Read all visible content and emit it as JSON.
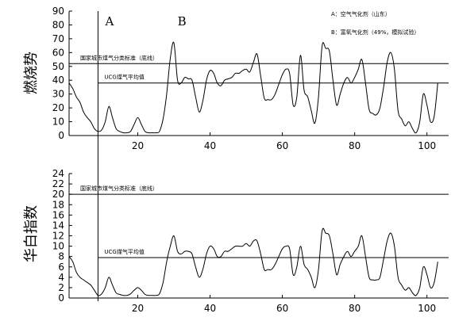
{
  "chart_data": [
    {
      "type": "line",
      "ylabel": "燃烧势",
      "ylim": [
        0,
        90
      ],
      "yticks": [
        0,
        10,
        20,
        30,
        40,
        50,
        60,
        70,
        80,
        90
      ],
      "xlim": [
        1,
        106
      ],
      "xticks": [
        20,
        40,
        60,
        80,
        100
      ],
      "grid": false,
      "legend_position": "top-right",
      "legend": [
        "A：空气气化剂（山东）",
        "B：富氧气化剂（49%，模拟试验）"
      ],
      "region_labels": [
        {
          "text": "A",
          "x": 11
        },
        {
          "text": "B",
          "x": 31
        }
      ],
      "divider_x": 9,
      "reference_lines": [
        {
          "label": "国家城市煤气分类标准（底线）",
          "y": 52
        },
        {
          "label": "UCG煤气平均值",
          "y": 38
        }
      ],
      "series": [
        {
          "x": [
            1,
            2,
            3,
            4,
            5,
            6,
            7,
            8,
            9,
            10,
            11,
            12,
            13,
            14,
            15,
            16,
            17,
            18,
            19,
            20,
            21,
            22,
            23,
            24,
            25,
            26,
            27,
            28,
            29,
            30,
            31,
            32,
            33,
            34,
            35,
            36,
            37,
            38,
            39,
            40,
            41,
            42,
            43,
            44,
            45,
            46,
            47,
            48,
            49,
            50,
            51,
            52,
            53,
            54,
            55,
            56,
            57,
            58,
            59,
            60,
            61,
            62,
            63,
            64,
            65,
            66,
            67,
            68,
            69,
            70,
            71,
            72,
            73,
            74,
            75,
            76,
            77,
            78,
            79,
            80,
            81,
            82,
            83,
            84,
            85,
            86,
            87,
            88,
            89,
            90,
            91,
            92,
            93,
            94,
            95,
            96,
            97,
            98,
            99,
            100,
            101,
            102,
            103
          ],
          "y": [
            38,
            34,
            28,
            24,
            17,
            13,
            10,
            5,
            3,
            4,
            10,
            21,
            13,
            5,
            3,
            2,
            2,
            3,
            8,
            13,
            8,
            3,
            2,
            2,
            2,
            3,
            12,
            30,
            56,
            67,
            40,
            38,
            42,
            41,
            40,
            28,
            17,
            25,
            40,
            47,
            45,
            38,
            36,
            40,
            41,
            42,
            45,
            45,
            47,
            48,
            46,
            53,
            59,
            43,
            27,
            26,
            26,
            30,
            37,
            44,
            48,
            45,
            22,
            28,
            58,
            33,
            28,
            18,
            9,
            28,
            65,
            63,
            61,
            40,
            22,
            30,
            38,
            42,
            38,
            42,
            48,
            55,
            38,
            19,
            16,
            15,
            20,
            35,
            53,
            60,
            48,
            18,
            12,
            7,
            10,
            5,
            2,
            10,
            30,
            22,
            10,
            14,
            38
          ]
        }
      ]
    },
    {
      "type": "line",
      "ylabel": "华白指数",
      "ylim": [
        0,
        24
      ],
      "yticks": [
        0,
        2,
        4,
        6,
        8,
        10,
        12,
        14,
        16,
        18,
        20,
        22,
        24
      ],
      "xlim": [
        1,
        106
      ],
      "xticks": [
        20,
        40,
        60,
        80,
        100
      ],
      "grid": false,
      "divider_x": 9,
      "reference_lines": [
        {
          "label": "国家城市煤气分类标准（底线）",
          "y": 20
        },
        {
          "label": "UCG煤气平均值",
          "y": 7.8
        }
      ],
      "series": [
        {
          "x": [
            1,
            2,
            3,
            4,
            5,
            6,
            7,
            8,
            9,
            10,
            11,
            12,
            13,
            14,
            15,
            16,
            17,
            18,
            19,
            20,
            21,
            22,
            23,
            24,
            25,
            26,
            27,
            28,
            29,
            30,
            31,
            32,
            33,
            34,
            35,
            36,
            37,
            38,
            39,
            40,
            41,
            42,
            43,
            44,
            45,
            46,
            47,
            48,
            49,
            50,
            51,
            52,
            53,
            54,
            55,
            56,
            57,
            58,
            59,
            60,
            61,
            62,
            63,
            64,
            65,
            66,
            67,
            68,
            69,
            70,
            71,
            72,
            73,
            74,
            75,
            76,
            77,
            78,
            79,
            80,
            81,
            82,
            83,
            84,
            85,
            86,
            87,
            88,
            89,
            90,
            91,
            92,
            93,
            94,
            95,
            96,
            97,
            98,
            99,
            100,
            101,
            102,
            103
          ],
          "y": [
            8,
            7,
            5,
            4,
            3.5,
            3,
            2.5,
            1.5,
            0.5,
            0.8,
            2,
            4,
            2.5,
            1,
            0.7,
            0.5,
            0.5,
            0.8,
            1.5,
            2,
            1.5,
            0.7,
            0.5,
            0.5,
            0.5,
            0.8,
            3,
            7,
            10,
            12,
            9,
            8.5,
            9,
            9,
            8.5,
            6,
            4,
            5.5,
            8.5,
            10,
            9.5,
            8,
            8,
            9,
            9,
            9.5,
            10,
            10,
            10,
            10.5,
            10,
            11,
            11,
            8.5,
            5.5,
            5.5,
            5.5,
            6.5,
            8,
            9.5,
            10,
            9.5,
            4.5,
            6,
            10,
            6.5,
            5.5,
            4,
            2,
            5.5,
            13,
            12.5,
            12,
            8.5,
            4.5,
            6.5,
            8,
            9,
            8,
            9,
            10,
            12,
            8,
            4,
            3.5,
            3.5,
            4,
            7.5,
            11,
            12.5,
            10,
            4,
            2.5,
            1.5,
            2,
            1,
            0.5,
            2,
            6,
            4.5,
            2,
            3,
            7
          ]
        }
      ]
    }
  ]
}
